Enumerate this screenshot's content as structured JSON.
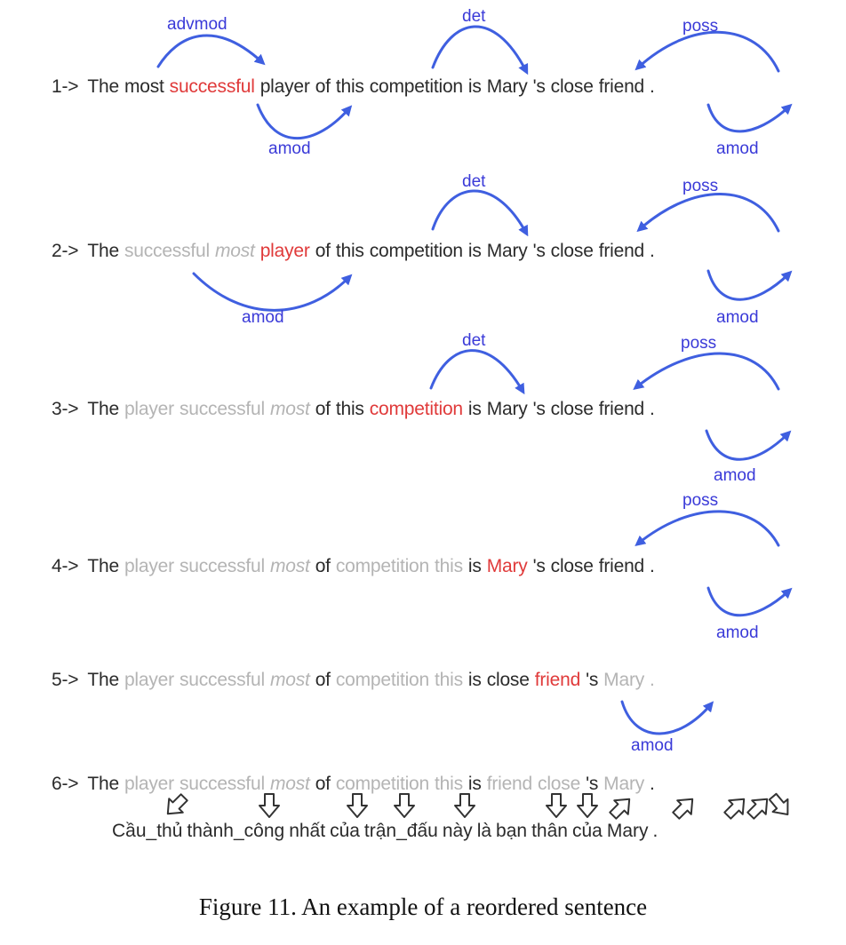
{
  "steps": [
    {
      "label": "1->",
      "tokens": [
        {
          "text": "The"
        },
        {
          "text": "most"
        },
        {
          "text": "successful",
          "style": "red"
        },
        {
          "text": "player"
        },
        {
          "text": "of"
        },
        {
          "text": "this"
        },
        {
          "text": "competition"
        },
        {
          "text": "is"
        },
        {
          "text": "Mary"
        },
        {
          "text": "'s"
        },
        {
          "text": "close"
        },
        {
          "text": "friend"
        },
        {
          "text": "."
        }
      ]
    },
    {
      "label": "2->",
      "tokens": [
        {
          "text": "The"
        },
        {
          "text": "successful",
          "style": "gray"
        },
        {
          "text": "most",
          "style": "gray-italic"
        },
        {
          "text": "player",
          "style": "red"
        },
        {
          "text": "of"
        },
        {
          "text": "this"
        },
        {
          "text": "competition"
        },
        {
          "text": "is"
        },
        {
          "text": "Mary"
        },
        {
          "text": "'s"
        },
        {
          "text": "close"
        },
        {
          "text": "friend"
        },
        {
          "text": "."
        }
      ]
    },
    {
      "label": "3->",
      "tokens": [
        {
          "text": "The"
        },
        {
          "text": "player",
          "style": "gray"
        },
        {
          "text": "successful",
          "style": "gray"
        },
        {
          "text": "most",
          "style": "gray-italic"
        },
        {
          "text": "of"
        },
        {
          "text": "this"
        },
        {
          "text": "competition",
          "style": "red"
        },
        {
          "text": "is"
        },
        {
          "text": "Mary"
        },
        {
          "text": "'s"
        },
        {
          "text": "close"
        },
        {
          "text": "friend"
        },
        {
          "text": "."
        }
      ]
    },
    {
      "label": "4->",
      "tokens": [
        {
          "text": "The"
        },
        {
          "text": "player",
          "style": "gray"
        },
        {
          "text": "successful",
          "style": "gray"
        },
        {
          "text": "most",
          "style": "gray-italic"
        },
        {
          "text": "of"
        },
        {
          "text": "competition",
          "style": "gray"
        },
        {
          "text": "this",
          "style": "gray"
        },
        {
          "text": "is"
        },
        {
          "text": "Mary",
          "style": "red"
        },
        {
          "text": "'s"
        },
        {
          "text": "close"
        },
        {
          "text": "friend"
        },
        {
          "text": "."
        }
      ]
    },
    {
      "label": "5->",
      "tokens": [
        {
          "text": "The"
        },
        {
          "text": "player",
          "style": "gray"
        },
        {
          "text": "successful",
          "style": "gray"
        },
        {
          "text": "most",
          "style": "gray-italic"
        },
        {
          "text": "of"
        },
        {
          "text": "competition",
          "style": "gray"
        },
        {
          "text": "this",
          "style": "gray"
        },
        {
          "text": "is"
        },
        {
          "text": "close"
        },
        {
          "text": "friend",
          "style": "red"
        },
        {
          "text": "'s"
        },
        {
          "text": "Mary",
          "style": "gray"
        },
        {
          "text": ".",
          "style": "gray"
        }
      ]
    },
    {
      "label": "6->",
      "tokens": [
        {
          "text": "The"
        },
        {
          "text": "player",
          "style": "gray"
        },
        {
          "text": "successful",
          "style": "gray"
        },
        {
          "text": "most",
          "style": "gray-italic"
        },
        {
          "text": "of"
        },
        {
          "text": "competition",
          "style": "gray"
        },
        {
          "text": "this",
          "style": "gray"
        },
        {
          "text": "is"
        },
        {
          "text": "friend",
          "style": "gray"
        },
        {
          "text": "close",
          "style": "gray"
        },
        {
          "text": "'s"
        },
        {
          "text": "Mary",
          "style": "gray"
        },
        {
          "text": "."
        }
      ]
    }
  ],
  "relations": {
    "advmod": "advmod",
    "det": "det",
    "poss": "poss",
    "amod": "amod"
  },
  "translation": [
    "Cầu_thủ",
    "thành_công",
    "nhất",
    "của",
    "trận_đấu",
    "này",
    "là",
    "bạn",
    "thân",
    "của",
    "Mary",
    "."
  ],
  "caption": "Figure 11.  An example of a reordered sentence",
  "colors": {
    "arc": "#3f5fe0",
    "relation_label": "#3a3ad8",
    "focus_word": "#e03a3a",
    "moved_word": "#b4b4b4",
    "text": "#2b2b2b"
  }
}
